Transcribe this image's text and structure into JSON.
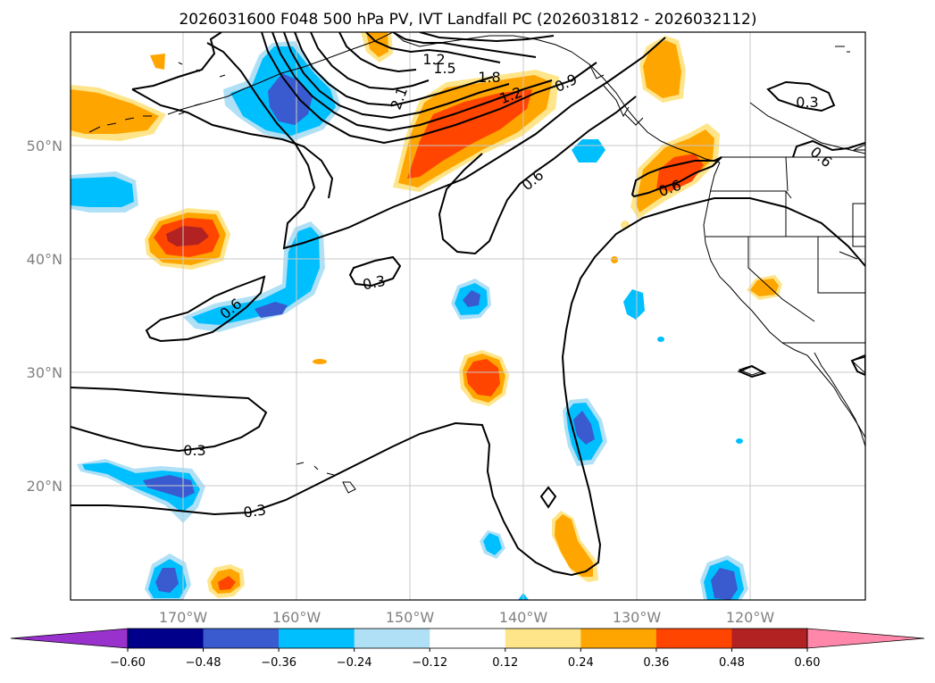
{
  "title": "2026031600 F048 500 hPa PV, IVT Landfall PC (2026031812 - 2026032112)",
  "lat_ticks": [
    "50°N",
    "40°N",
    "30°N",
    "20°N"
  ],
  "lon_ticks": [
    "170°W",
    "160°W",
    "150°W",
    "140°W",
    "130°W",
    "120°W"
  ],
  "colorbar": {
    "tick_labels": [
      "−0.60",
      "−0.48",
      "−0.36",
      "−0.24",
      "−0.12",
      "0.12",
      "0.24",
      "0.36",
      "0.48",
      "0.60"
    ],
    "colors": [
      "#9932cc",
      "#00008b",
      "#3a5bd0",
      "#00bfff",
      "#b0e0f6",
      "#ffffff",
      "#ffe58a",
      "#ffa500",
      "#ff4500",
      "#b22222",
      "#ff88aa"
    ]
  },
  "contour_labels": [
    "1.2",
    "1.5",
    "1.8",
    "2.1",
    "1.2",
    "0.9",
    "0.6",
    "0.3",
    "0.3",
    "0.6",
    "0.6",
    "0.3",
    "0.3",
    "0.6"
  ],
  "colors": {
    "coast": "#000000",
    "grid": "#c8c8c8",
    "contour": "#000000"
  }
}
